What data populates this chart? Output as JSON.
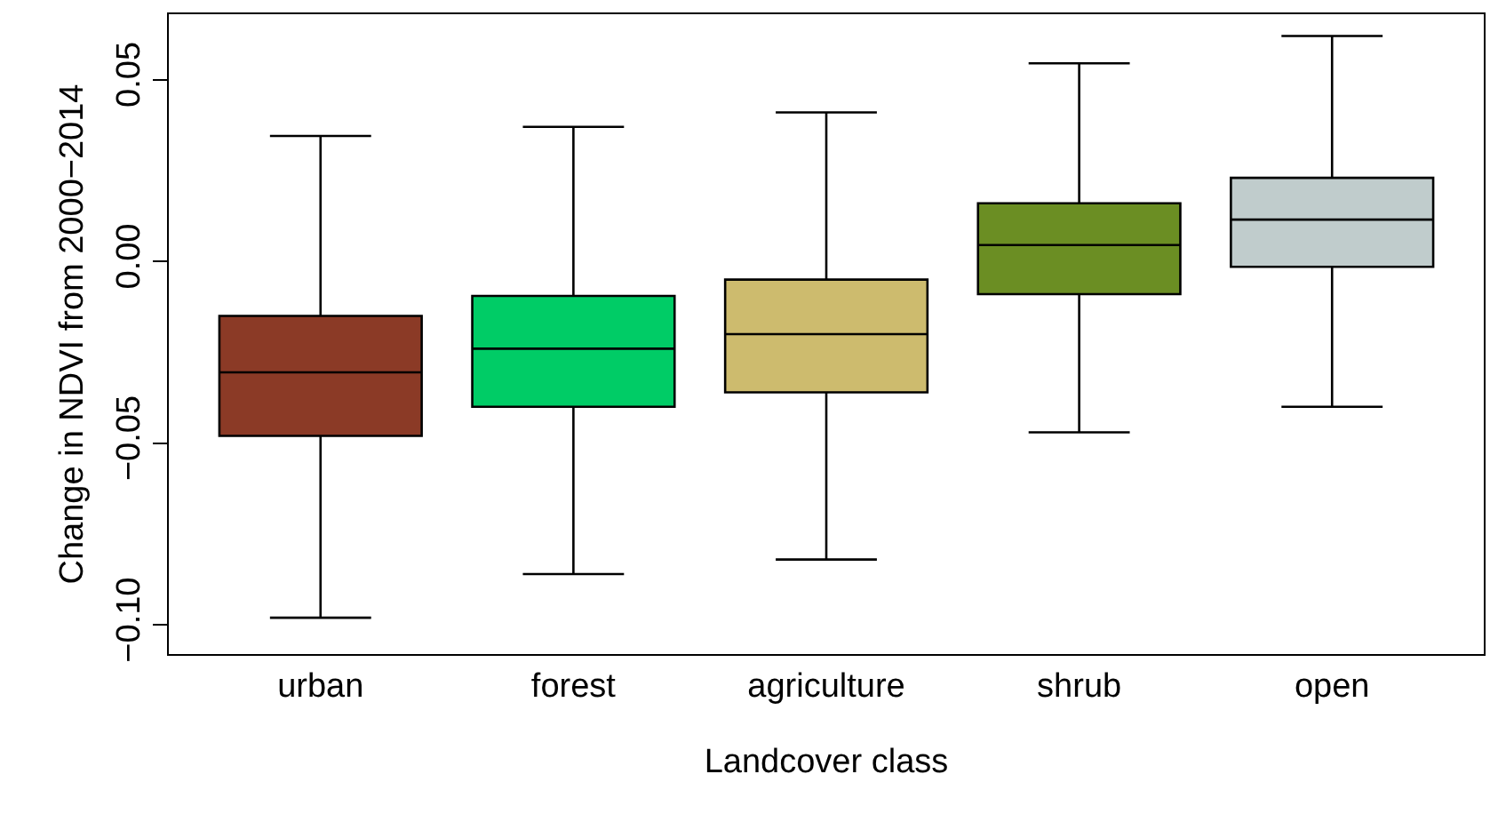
{
  "chart_data": {
    "type": "box",
    "xlabel": "Landcover class",
    "ylabel": "Change in NDVI from 2000−2014",
    "categories": [
      "urban",
      "forest",
      "agriculture",
      "shrub",
      "open"
    ],
    "colors": [
      "#8b3a26",
      "#00cc66",
      "#cdbb6e",
      "#6b8e23",
      "#c0cccc"
    ],
    "boxes": [
      {
        "low": -0.098,
        "q1": -0.048,
        "median": -0.0305,
        "q3": -0.015,
        "high": 0.0345
      },
      {
        "low": -0.086,
        "q1": -0.04,
        "median": -0.024,
        "q3": -0.0095,
        "high": 0.037
      },
      {
        "low": -0.082,
        "q1": -0.036,
        "median": -0.02,
        "q3": -0.005,
        "high": 0.041
      },
      {
        "low": -0.047,
        "q1": -0.009,
        "median": 0.0045,
        "q3": 0.016,
        "high": 0.0545
      },
      {
        "low": -0.04,
        "q1": -0.0015,
        "median": 0.0115,
        "q3": 0.023,
        "high": 0.062
      }
    ],
    "ylim": [
      -0.108,
      0.068
    ],
    "yticks": [
      {
        "value": -0.1,
        "label": "−0.10"
      },
      {
        "value": -0.05,
        "label": "−0.05"
      },
      {
        "value": 0,
        "label": "0.00"
      },
      {
        "value": 0.05,
        "label": "0.05"
      }
    ],
    "grid": false
  }
}
